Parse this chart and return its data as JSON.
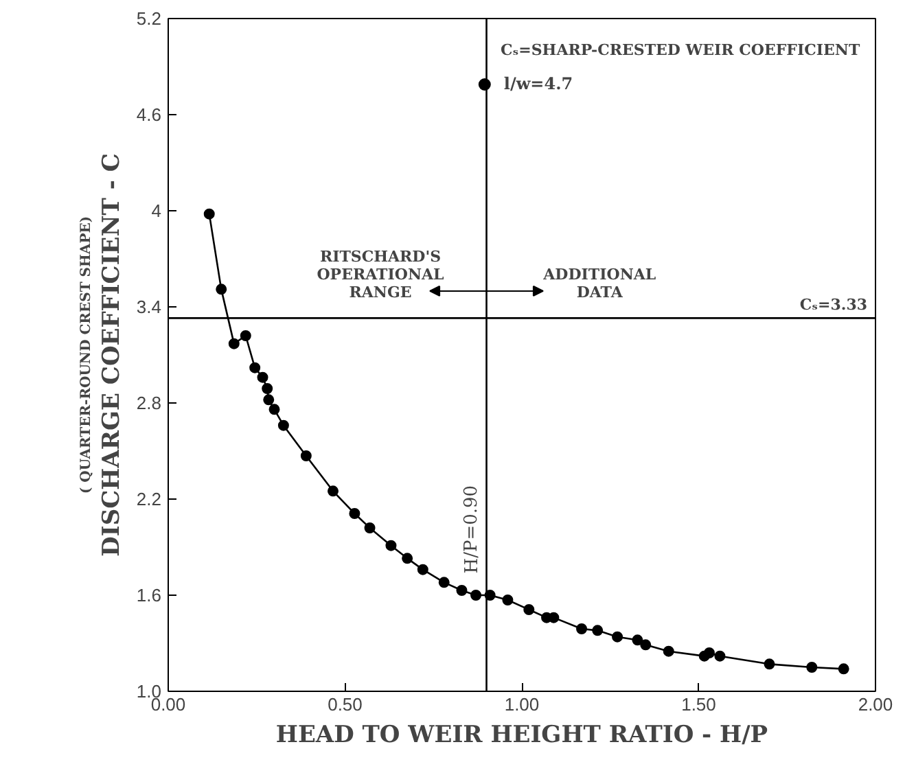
{
  "chart_data": {
    "type": "line",
    "xlabel": "HEAD TO WEIR HEIGHT RATIO - H/P",
    "ylabel": "DISCHARGE COEFFICIENT - C",
    "xlim": [
      0,
      2
    ],
    "xticks": [
      {
        "value": 0,
        "label": "0.00"
      },
      {
        "value": 0.5,
        "label": "0.50"
      },
      {
        "value": 1,
        "label": "1.00"
      },
      {
        "value": 1.5,
        "label": "1.50"
      },
      {
        "value": 2,
        "label": "2.00"
      }
    ],
    "ylim": [
      1,
      5.2
    ],
    "yticks": [
      {
        "value": 1,
        "label": "1.0"
      },
      1.6,
      2.2,
      2.8,
      3.4,
      4.0,
      4.6,
      5.2
    ],
    "marker": "circle",
    "legend": "top",
    "grid": false,
    "series": [
      {
        "name": "l/w=4.7",
        "color": "#000000",
        "x": [
          0.116,
          0.15,
          0.186,
          0.219,
          0.245,
          0.267,
          0.28,
          0.284,
          0.3,
          0.326,
          0.39,
          0.466,
          0.527,
          0.57,
          0.63,
          0.676,
          0.72,
          0.78,
          0.83,
          0.87,
          0.91,
          0.96,
          1.02,
          1.07,
          1.09,
          1.169,
          1.214,
          1.27,
          1.327,
          1.35,
          1.415,
          1.516,
          1.53,
          1.56,
          1.7,
          1.82,
          1.91
        ],
        "values": [
          3.98,
          3.51,
          3.17,
          3.22,
          3.02,
          2.96,
          2.89,
          2.82,
          2.76,
          2.66,
          2.47,
          2.25,
          2.11,
          2.02,
          1.91,
          1.83,
          1.76,
          1.68,
          1.63,
          1.6,
          1.6,
          1.57,
          1.51,
          1.46,
          1.46,
          1.39,
          1.38,
          1.34,
          1.32,
          1.29,
          1.25,
          1.22,
          1.24,
          1.22,
          1.17,
          1.15,
          1.14
        ]
      }
    ],
    "ref_lines": [
      {
        "axis": "y",
        "value": 3.33,
        "label": "Cₛ=3.33",
        "color": "#000000"
      },
      {
        "axis": "x",
        "value": 0.9,
        "label": "H/P=0.90",
        "color": "#000000"
      }
    ],
    "annotations": [
      "( QUARTER-ROUND CREST SHAPE)",
      "Cₛ=SHARP-CRESTED WEIR COEFFICIENT",
      "RITSCHARD'S\nOPERATIONAL\nRANGE",
      "ADDITIONAL\nDATA"
    ]
  }
}
